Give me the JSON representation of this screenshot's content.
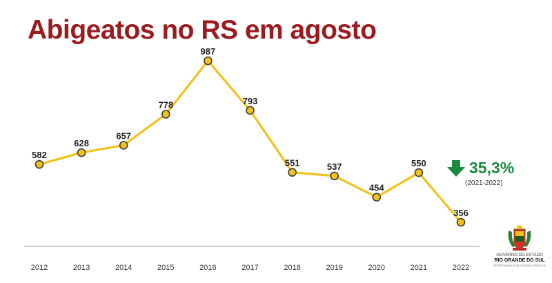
{
  "chart_data": {
    "type": "line",
    "title": "Abigeatos no RS em agosto",
    "categories": [
      "2012",
      "2013",
      "2014",
      "2015",
      "2016",
      "2017",
      "2018",
      "2019",
      "2020",
      "2021",
      "2022"
    ],
    "series": [
      {
        "values": [
          582,
          628,
          657,
          778,
          987,
          793,
          551,
          537,
          454,
          550,
          356
        ]
      }
    ],
    "data_labels": [
      "582",
      "628",
      "657",
      "778",
      "987",
      "793",
      "551",
      "537",
      "454",
      "550",
      "356"
    ],
    "ylim": [
      250,
      1000
    ],
    "grid": false,
    "colors": {
      "line": "#f2c21b",
      "marker_fill": "#f2c21b",
      "marker_stroke": "#3a3a3a",
      "axis": "#999999",
      "title": "#9b1b1f"
    }
  },
  "annotation": {
    "change_value": "35,3%",
    "period": "(2021-2022)",
    "icon": "arrow-down-icon",
    "color": "#1a8a3e"
  },
  "logo": {
    "icon": "state-coat-of-arms-icon",
    "line1": "GOVERNO DO ESTADO",
    "line2": "RIO GRANDE DO SUL",
    "line3": "SECRETARIA DA SEGURANÇA PÚBLICA"
  }
}
